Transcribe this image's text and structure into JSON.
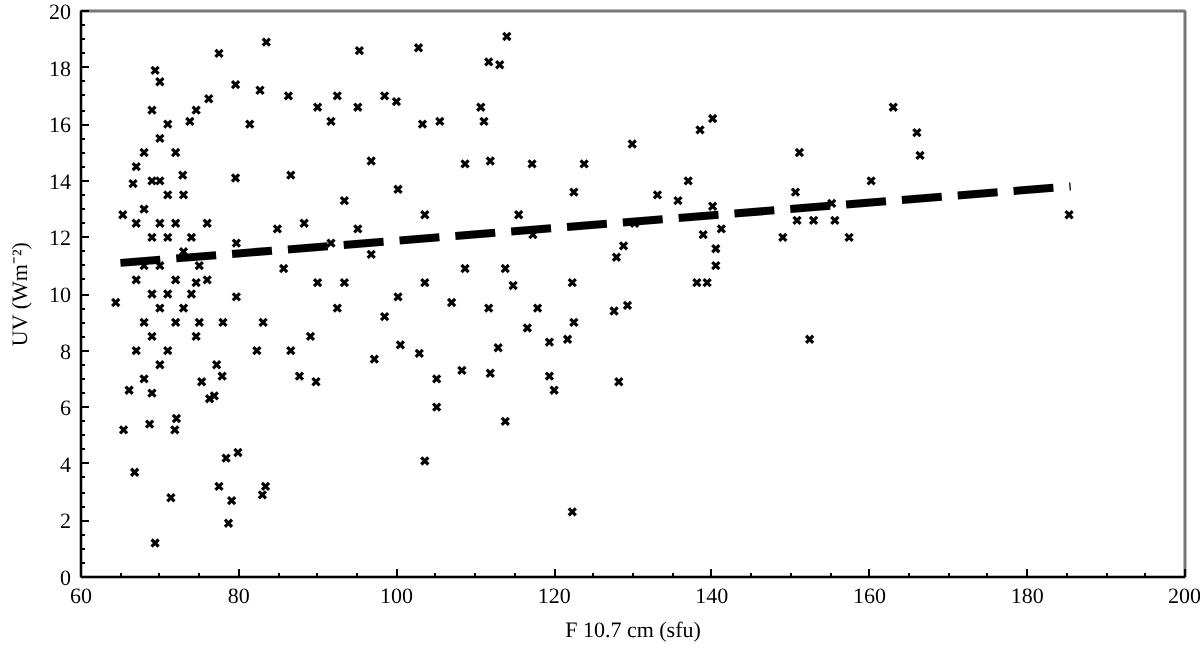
{
  "chart_data": {
    "type": "scatter",
    "xlabel": "F 10.7 cm (sfu)",
    "ylabel": "UV (Wm⁻²)",
    "xlim": [
      60,
      200
    ],
    "ylim": [
      0,
      20
    ],
    "xticks": [
      60,
      80,
      100,
      120,
      140,
      160,
      180,
      200
    ],
    "yticks": [
      0,
      2,
      4,
      6,
      8,
      10,
      12,
      14,
      16,
      18,
      20
    ],
    "grid": false,
    "marker": "cross",
    "series": [
      {
        "color": "#000000",
        "x": [
          163.0,
          166.0,
          166.4,
          185.3,
          160.2,
          157.4,
          155.6,
          155.2,
          152.9,
          150.8,
          152.4,
          151.1,
          149.0,
          150.6,
          140.1,
          138.5,
          129.9,
          133.1,
          137.0,
          135.7,
          140.1,
          138.9,
          141.2,
          140.5,
          140.5,
          138.1,
          139.4,
          128.8,
          127.9,
          129.3,
          127.6,
          128.2,
          130.2,
          69.4,
          78.7,
          79.1,
          77.5,
          83.0,
          83.4,
          71.4,
          78.4,
          79.9,
          66.8,
          103.6,
          113.8,
          122.3,
          83.5,
          95.3,
          102.8,
          114.0,
          111.7,
          113.1,
          77.5,
          79.6,
          69.4,
          82.7,
          86.3,
          92.5,
          98.5,
          100.0,
          110.7,
          111.1,
          105.5,
          103.3,
          95.1,
          90.0,
          74.6,
          76.2,
          66.1,
          65.4,
          68.7,
          71.9,
          72.1,
          76.3,
          76.9,
          75.3,
          77.2,
          77.9,
          87.7,
          89.8,
          97.2,
          105.1,
          105.1,
          108.3,
          111.9,
          119.4,
          120.0,
          119.4,
          121.7,
          122.5,
          102.9,
          100.5,
          112.9,
          111.7,
          114.8,
          117.9,
          116.6,
          64.4,
          65.3,
          66.6,
          79.6,
          81.4,
          86.6,
          91.7,
          93.4,
          96.8,
          100.2,
          103.6,
          108.7,
          111.9,
          117.2,
          115.5,
          117.3,
          85.7,
          90.0,
          93.4,
          96.8,
          100.2,
          103.6,
          107.0,
          108.7,
          113.8,
          122.3,
          83.1,
          86.6,
          89.1,
          92.5,
          98.5,
          84.9,
          88.3,
          91.7,
          95.1,
          79.7,
          79.7,
          82.3,
          78.0,
          74.6,
          74.6,
          72.9,
          73.8,
          123.8,
          122.5,
          67,
          67,
          67,
          67,
          68,
          68,
          68,
          68,
          68,
          69,
          69,
          69,
          69,
          69,
          69,
          70,
          70,
          70,
          70,
          70,
          70,
          70,
          71,
          71,
          71,
          71,
          71,
          72,
          72,
          72,
          72,
          73,
          73,
          73,
          74,
          74,
          75,
          75,
          76,
          76
        ],
        "values": [
          16.6,
          15.7,
          14.9,
          12.8,
          14.0,
          12.0,
          12.6,
          13.2,
          12.6,
          12.6,
          8.4,
          15.0,
          12.0,
          13.6,
          16.2,
          15.8,
          15.3,
          13.5,
          14.0,
          13.3,
          13.1,
          12.1,
          12.3,
          11.6,
          11.0,
          10.4,
          10.4,
          11.7,
          11.3,
          9.6,
          9.4,
          6.9,
          12.5,
          1.2,
          1.9,
          2.7,
          3.2,
          2.9,
          3.2,
          2.8,
          4.2,
          4.4,
          3.7,
          4.1,
          5.5,
          2.3,
          18.9,
          18.6,
          18.7,
          19.1,
          18.2,
          18.1,
          18.5,
          17.4,
          17.9,
          17.2,
          17.0,
          17.0,
          17.0,
          16.8,
          16.6,
          16.1,
          16.1,
          16.0,
          16.6,
          16.6,
          16.5,
          16.9,
          6.6,
          5.2,
          5.4,
          5.2,
          5.6,
          6.3,
          6.4,
          6.9,
          7.5,
          7.1,
          7.1,
          6.9,
          7.7,
          6.0,
          7.0,
          7.3,
          7.2,
          7.1,
          6.6,
          8.3,
          8.4,
          9.0,
          7.9,
          8.2,
          8.1,
          9.5,
          10.3,
          9.5,
          8.8,
          9.7,
          12.8,
          13.9,
          14.1,
          16.0,
          14.2,
          16.1,
          13.3,
          14.7,
          13.7,
          12.8,
          14.6,
          14.7,
          14.6,
          12.8,
          12.1,
          10.9,
          10.4,
          10.4,
          11.4,
          9.9,
          10.4,
          9.7,
          10.9,
          10.9,
          10.4,
          9.0,
          8.0,
          8.5,
          9.5,
          9.2,
          12.3,
          12.5,
          11.8,
          12.3,
          11.8,
          9.9,
          8.0,
          9.0,
          10.4,
          8.5,
          14.2,
          16.1,
          14.6,
          13.6,
          8.0,
          10.5,
          12.5,
          14.5,
          7.0,
          9.0,
          11.0,
          13.0,
          15.0,
          6.5,
          8.5,
          10.0,
          12.0,
          14.0,
          16.5,
          7.5,
          9.5,
          11.0,
          12.5,
          14.0,
          15.5,
          17.5,
          8.0,
          10.0,
          12.0,
          13.5,
          16.0,
          9.0,
          10.5,
          12.5,
          15.0,
          9.5,
          11.5,
          13.5,
          10.0,
          12.0,
          9.0,
          11.0,
          10.5,
          12.5
        ]
      },
      {
        "type": "line",
        "marker": "none",
        "line_style": "dashed",
        "color": "#000000",
        "x": [
          65,
          185.5
        ],
        "values": [
          11.1,
          13.8
        ]
      }
    ]
  }
}
